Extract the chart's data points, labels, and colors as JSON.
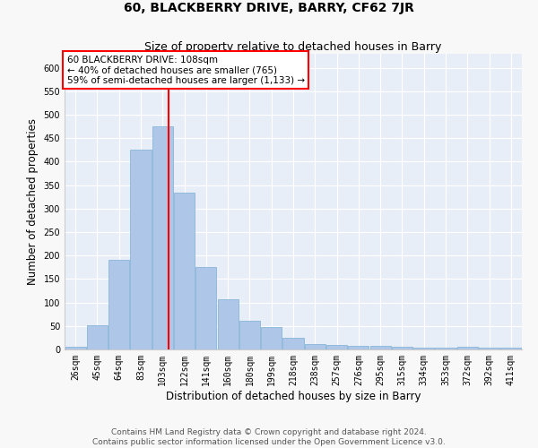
{
  "title": "60, BLACKBERRY DRIVE, BARRY, CF62 7JR",
  "subtitle": "Size of property relative to detached houses in Barry",
  "xlabel": "Distribution of detached houses by size in Barry",
  "ylabel": "Number of detached properties",
  "categories": [
    "26sqm",
    "45sqm",
    "64sqm",
    "83sqm",
    "103sqm",
    "122sqm",
    "141sqm",
    "160sqm",
    "180sqm",
    "199sqm",
    "218sqm",
    "238sqm",
    "257sqm",
    "276sqm",
    "295sqm",
    "315sqm",
    "334sqm",
    "353sqm",
    "372sqm",
    "392sqm",
    "411sqm"
  ],
  "values": [
    5,
    52,
    190,
    425,
    475,
    335,
    175,
    107,
    62,
    47,
    25,
    12,
    10,
    8,
    7,
    5,
    4,
    3,
    5,
    3,
    3
  ],
  "bar_color": "#aec6e8",
  "bar_edge_color": "#7aafd4",
  "background_color": "#e8eef8",
  "grid_color": "#ffffff",
  "vline_color": "red",
  "annotation_box_text": "60 BLACKBERRY DRIVE: 108sqm\n← 40% of detached houses are smaller (765)\n59% of semi-detached houses are larger (1,133) →",
  "annotation_box_color": "red",
  "footer_text": "Contains HM Land Registry data © Crown copyright and database right 2024.\nContains public sector information licensed under the Open Government Licence v3.0.",
  "ylim": [
    0,
    630
  ],
  "yticks": [
    0,
    50,
    100,
    150,
    200,
    250,
    300,
    350,
    400,
    450,
    500,
    550,
    600
  ],
  "title_fontsize": 10,
  "subtitle_fontsize": 9,
  "axis_label_fontsize": 8.5,
  "tick_fontsize": 7,
  "footer_fontsize": 6.5,
  "annot_fontsize": 7.5
}
